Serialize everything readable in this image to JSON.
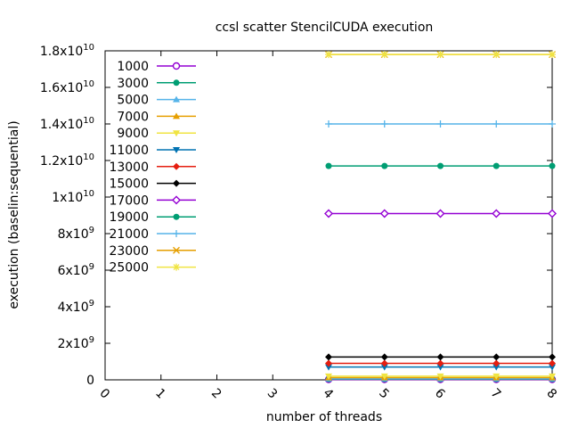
{
  "chart_data": {
    "type": "line",
    "title": "ccsl scatter StencilCUDA execution",
    "xlabel": "number of threads",
    "ylabel": "execution (baselin:sequential)",
    "xlim": [
      0,
      8
    ],
    "ylim": [
      0,
      18000000000
    ],
    "x_ticks": [
      "0",
      "1",
      "2",
      "3",
      "4",
      "5",
      "6",
      "7",
      "8"
    ],
    "y_ticks": [
      {
        "value": 0,
        "mantissa": "0",
        "exp": ""
      },
      {
        "value": 2000000000,
        "mantissa": "2x10",
        "exp": "9"
      },
      {
        "value": 4000000000,
        "mantissa": "4x10",
        "exp": "9"
      },
      {
        "value": 6000000000,
        "mantissa": "6x10",
        "exp": "9"
      },
      {
        "value": 8000000000,
        "mantissa": "8x10",
        "exp": "9"
      },
      {
        "value": 10000000000,
        "mantissa": "1x10",
        "exp": "10"
      },
      {
        "value": 12000000000,
        "mantissa": "1.2x10",
        "exp": "10"
      },
      {
        "value": 14000000000,
        "mantissa": "1.4x10",
        "exp": "10"
      },
      {
        "value": 16000000000,
        "mantissa": "1.6x10",
        "exp": "10"
      },
      {
        "value": 18000000000,
        "mantissa": "1.8x10",
        "exp": "10"
      }
    ],
    "legend_position": "top-left",
    "grid": false,
    "x": [
      4,
      5,
      6,
      7,
      8
    ],
    "series": [
      {
        "name": "1000",
        "color": "#9400d3",
        "marker": "circle-open",
        "values": [
          20000000,
          20000000,
          20000000,
          20000000,
          20000000
        ]
      },
      {
        "name": "3000",
        "color": "#009e73",
        "marker": "circle",
        "values": [
          40000000,
          40000000,
          40000000,
          40000000,
          40000000
        ]
      },
      {
        "name": "5000",
        "color": "#56b4e9",
        "marker": "triangle",
        "values": [
          60000000,
          60000000,
          60000000,
          60000000,
          60000000
        ]
      },
      {
        "name": "7000",
        "color": "#e69f00",
        "marker": "triangle",
        "values": [
          120000000,
          120000000,
          120000000,
          120000000,
          120000000
        ]
      },
      {
        "name": "9000",
        "color": "#f0e442",
        "marker": "triangle-down",
        "values": [
          200000000,
          200000000,
          200000000,
          200000000,
          200000000
        ]
      },
      {
        "name": "11000",
        "color": "#0072b2",
        "marker": "triangle-down",
        "values": [
          700000000,
          700000000,
          700000000,
          700000000,
          700000000
        ]
      },
      {
        "name": "13000",
        "color": "#e51e10",
        "marker": "diamond",
        "values": [
          900000000,
          900000000,
          900000000,
          900000000,
          900000000
        ]
      },
      {
        "name": "15000",
        "color": "#000000",
        "marker": "diamond",
        "values": [
          1250000000,
          1250000000,
          1250000000,
          1250000000,
          1250000000
        ]
      },
      {
        "name": "17000",
        "color": "#9400d3",
        "marker": "diamond-open",
        "values": [
          9100000000,
          9100000000,
          9100000000,
          9100000000,
          9100000000
        ]
      },
      {
        "name": "19000",
        "color": "#009e73",
        "marker": "circle",
        "values": [
          11700000000,
          11700000000,
          11700000000,
          11700000000,
          11700000000
        ]
      },
      {
        "name": "21000",
        "color": "#56b4e9",
        "marker": "plus",
        "values": [
          14000000000,
          14000000000,
          14000000000,
          14000000000,
          14000000000
        ]
      },
      {
        "name": "23000",
        "color": "#e69f00",
        "marker": "cross",
        "values": [
          17800000000,
          17800000000,
          17800000000,
          17800000000,
          17800000000
        ]
      },
      {
        "name": "25000",
        "color": "#f0e442",
        "marker": "star",
        "values": [
          17800000000,
          17800000000,
          17800000000,
          17800000000,
          17800000000
        ]
      }
    ]
  }
}
